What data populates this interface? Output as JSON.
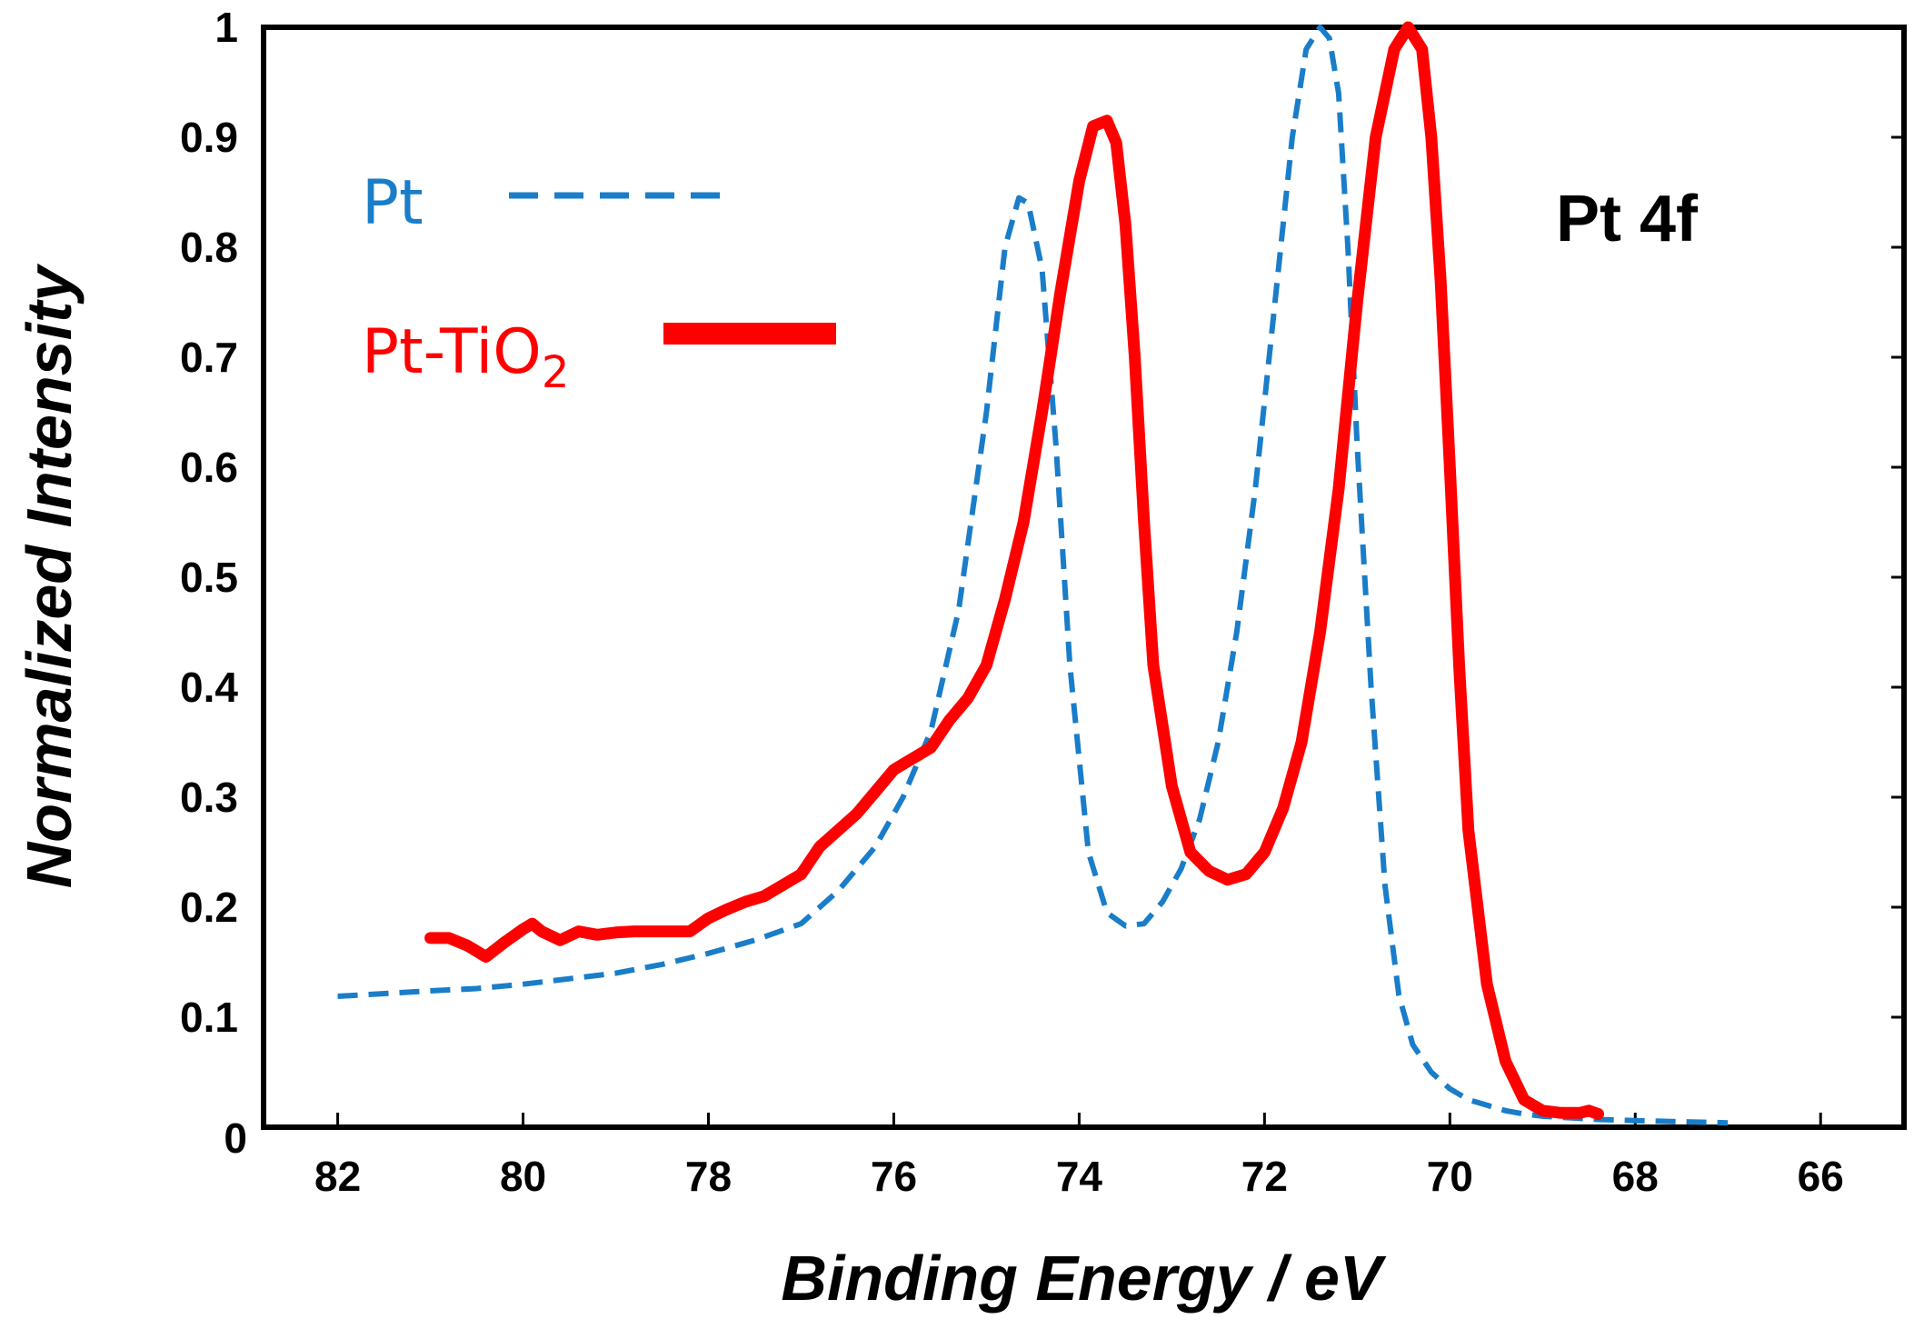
{
  "chart_data": {
    "type": "line",
    "title": "",
    "annotation": "Pt 4f",
    "xlabel": "Binding Energy / eV",
    "ylabel": "Normalized Intensity",
    "xlim": [
      82.8,
      65.1
    ],
    "ylim": [
      0,
      1
    ],
    "x_ticks": [
      "82",
      "80",
      "78",
      "76",
      "74",
      "72",
      "70",
      "68",
      "66"
    ],
    "y_ticks": [
      "0",
      "0.1",
      "0.2",
      "0.3",
      "0.4",
      "0.5",
      "0.6",
      "0.7",
      "0.8",
      "0.9",
      "1"
    ],
    "legend_position": "top-left",
    "series": [
      {
        "name": "Pt",
        "color": "#1a7dc9",
        "style": "dashed",
        "x": [
          82.0,
          81.6,
          81.0,
          80.5,
          80.0,
          79.5,
          79.0,
          78.5,
          78.0,
          77.5,
          77.0,
          76.6,
          76.2,
          75.9,
          75.6,
          75.3,
          75.0,
          74.8,
          74.65,
          74.55,
          74.4,
          74.25,
          74.1,
          73.9,
          73.7,
          73.5,
          73.3,
          73.1,
          72.9,
          72.7,
          72.5,
          72.3,
          72.1,
          71.9,
          71.7,
          71.55,
          71.4,
          71.3,
          71.2,
          71.1,
          71.0,
          70.85,
          70.7,
          70.55,
          70.4,
          70.2,
          70.0,
          69.8,
          69.6,
          69.4,
          69.2,
          69.0,
          68.8,
          68.6,
          68.4,
          68.0,
          67.5,
          67.0
        ],
        "y": [
          0.119,
          0.121,
          0.124,
          0.126,
          0.13,
          0.135,
          0.14,
          0.148,
          0.158,
          0.17,
          0.185,
          0.215,
          0.255,
          0.3,
          0.36,
          0.47,
          0.65,
          0.8,
          0.845,
          0.84,
          0.78,
          0.62,
          0.42,
          0.25,
          0.195,
          0.183,
          0.185,
          0.205,
          0.235,
          0.28,
          0.35,
          0.45,
          0.58,
          0.74,
          0.9,
          0.98,
          1.0,
          0.99,
          0.94,
          0.8,
          0.62,
          0.4,
          0.22,
          0.12,
          0.075,
          0.05,
          0.035,
          0.025,
          0.02,
          0.015,
          0.012,
          0.01,
          0.009,
          0.008,
          0.007,
          0.006,
          0.005,
          0.004
        ]
      },
      {
        "name": "Pt-TiO2",
        "color": "#ff0000",
        "style": "solid",
        "x": [
          81.0,
          80.8,
          80.6,
          80.4,
          80.2,
          80.0,
          79.9,
          79.8,
          79.6,
          79.4,
          79.2,
          79.0,
          78.8,
          78.6,
          78.4,
          78.2,
          78.0,
          77.8,
          77.6,
          77.4,
          77.2,
          77.0,
          76.8,
          76.6,
          76.4,
          76.2,
          76.0,
          75.8,
          75.6,
          75.4,
          75.2,
          75.0,
          74.8,
          74.6,
          74.4,
          74.2,
          74.0,
          73.85,
          73.7,
          73.6,
          73.5,
          73.4,
          73.3,
          73.2,
          73.0,
          72.8,
          72.6,
          72.4,
          72.2,
          72.0,
          71.8,
          71.6,
          71.4,
          71.2,
          71.0,
          70.8,
          70.6,
          70.45,
          70.3,
          70.2,
          70.1,
          70.0,
          69.9,
          69.8,
          69.6,
          69.4,
          69.2,
          69.0,
          68.8,
          68.6,
          68.5,
          68.4
        ],
        "y": [
          0.172,
          0.172,
          0.165,
          0.155,
          0.168,
          0.18,
          0.185,
          0.178,
          0.17,
          0.178,
          0.175,
          0.177,
          0.178,
          0.178,
          0.178,
          0.178,
          0.19,
          0.198,
          0.205,
          0.21,
          0.22,
          0.23,
          0.255,
          0.27,
          0.285,
          0.305,
          0.325,
          0.335,
          0.345,
          0.37,
          0.39,
          0.42,
          0.48,
          0.55,
          0.65,
          0.76,
          0.86,
          0.91,
          0.915,
          0.895,
          0.82,
          0.7,
          0.55,
          0.42,
          0.31,
          0.25,
          0.233,
          0.225,
          0.23,
          0.25,
          0.29,
          0.35,
          0.45,
          0.58,
          0.75,
          0.9,
          0.98,
          1.0,
          0.98,
          0.9,
          0.77,
          0.6,
          0.42,
          0.27,
          0.13,
          0.06,
          0.025,
          0.015,
          0.013,
          0.013,
          0.015,
          0.012
        ]
      }
    ]
  }
}
